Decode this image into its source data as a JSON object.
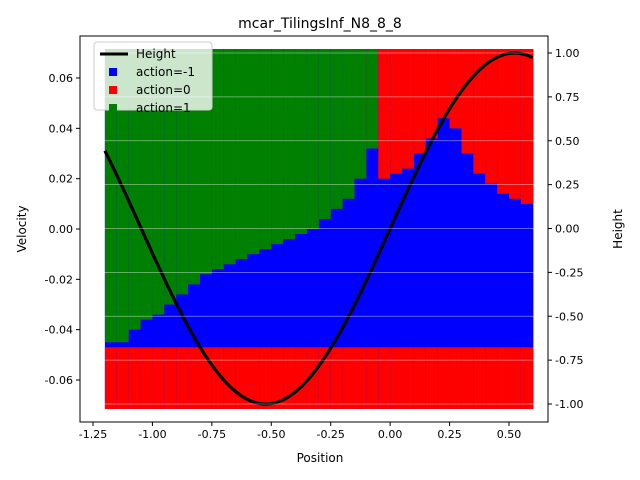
{
  "chart_data": {
    "type": "heatmap",
    "title": "mcar_TilingsInf_N8_8_8",
    "xlabel": "Position",
    "ylabel_left": "Velocity",
    "ylabel_right": "Height",
    "xlim": [
      -1.2,
      0.6
    ],
    "ylim_left": [
      -0.07,
      0.07
    ],
    "ylim_right": [
      -1.0,
      1.0
    ],
    "xticks": [
      "-1.25",
      "-1.00",
      "-0.75",
      "-0.50",
      "-0.25",
      "0.00",
      "0.25",
      "0.50"
    ],
    "xtick_values": [
      -1.25,
      -1.0,
      -0.75,
      -0.5,
      -0.25,
      0.0,
      0.25,
      0.5
    ],
    "yticks_left": [
      "-0.06",
      "-0.04",
      "-0.02",
      "0.00",
      "0.02",
      "0.04",
      "0.06"
    ],
    "ytick_left_values": [
      -0.06,
      -0.04,
      -0.02,
      0.0,
      0.02,
      0.04,
      0.06
    ],
    "yticks_right": [
      "-1.00",
      "-0.75",
      "-0.50",
      "-0.25",
      "0.00",
      "0.25",
      "0.50",
      "0.75",
      "1.00"
    ],
    "ytick_right_values": [
      -1.0,
      -0.75,
      -0.5,
      -0.25,
      0.0,
      0.25,
      0.5,
      0.75,
      1.0
    ],
    "legend": {
      "placement": "top-left",
      "entries": [
        {
          "label": "Height",
          "kind": "line",
          "color": "#000000"
        },
        {
          "label": "action=-1",
          "kind": "square",
          "color": "#0000ff"
        },
        {
          "label": "action=0",
          "kind": "square",
          "color": "#ff0000"
        },
        {
          "label": "action=1",
          "kind": "square",
          "color": "#008000"
        }
      ]
    },
    "colors": {
      "action=-1": "#0000ff",
      "action=0": "#ff0000",
      "action=1": "#008000",
      "height": "#000000"
    },
    "height_series": {
      "name": "Height",
      "formula": "sin(3*position)",
      "x_range": [
        -1.2,
        0.6
      ]
    },
    "regions": {
      "description": "approximate policy map: columns of velocity boundaries",
      "x": [
        -1.2,
        -1.15,
        -1.1,
        -1.05,
        -1.0,
        -0.95,
        -0.9,
        -0.85,
        -0.8,
        -0.75,
        -0.7,
        -0.65,
        -0.6,
        -0.55,
        -0.5,
        -0.45,
        -0.4,
        -0.35,
        -0.3,
        -0.25,
        -0.2,
        -0.15,
        -0.1,
        -0.05,
        0.0,
        0.05,
        0.1,
        0.15,
        0.2,
        0.25,
        0.3,
        0.35,
        0.4,
        0.45,
        0.5,
        0.55
      ],
      "green_bottom": [
        -0.045,
        -0.045,
        -0.04,
        -0.036,
        -0.034,
        -0.03,
        -0.026,
        -0.022,
        -0.018,
        -0.016,
        -0.014,
        -0.012,
        -0.01,
        -0.008,
        -0.006,
        -0.004,
        -0.002,
        0.0,
        0.004,
        0.008,
        0.012,
        0.02,
        0.032,
        0.07,
        0.07,
        0.07,
        0.07,
        0.07,
        0.07,
        0.07,
        0.07,
        0.07,
        0.07,
        0.07,
        0.07,
        0.07
      ],
      "blue_top_right": [
        0.07,
        0.07,
        0.07,
        0.07,
        0.07,
        0.07,
        0.07,
        0.07,
        0.07,
        0.07,
        0.07,
        0.07,
        0.07,
        0.07,
        0.07,
        0.07,
        0.07,
        0.07,
        0.07,
        0.07,
        0.07,
        0.07,
        0.034,
        0.02,
        0.022,
        0.024,
        0.03,
        0.036,
        0.044,
        0.04,
        0.03,
        0.022,
        0.018,
        0.014,
        0.012,
        0.01
      ],
      "red_band": [
        -0.0715,
        -0.047
      ]
    }
  }
}
